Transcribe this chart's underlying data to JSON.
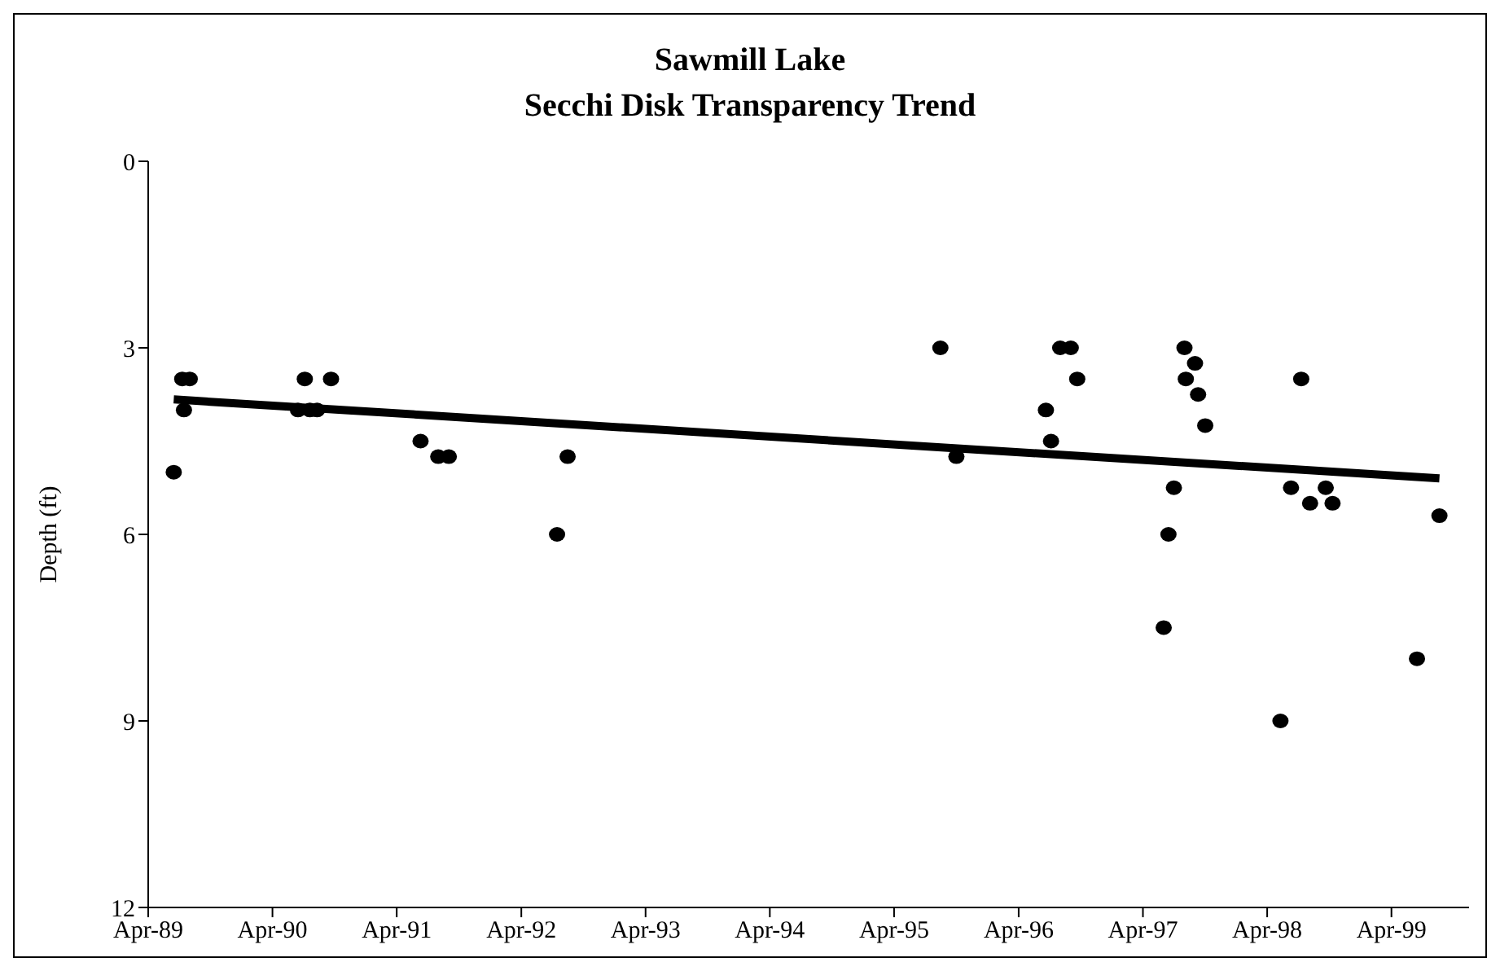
{
  "chart_data": {
    "type": "scatter",
    "title": "Sawmill Lake\nSecchi Disk Transparency Trend",
    "ylabel": "Depth (ft)",
    "xlim": [
      "1989-04-01",
      "1999-11-15"
    ],
    "xticks": [
      {
        "value": "1989-04-01",
        "label": "Apr-89"
      },
      {
        "value": "1990-04-01",
        "label": "Apr-90"
      },
      {
        "value": "1991-04-01",
        "label": "Apr-91"
      },
      {
        "value": "1992-04-01",
        "label": "Apr-92"
      },
      {
        "value": "1993-04-01",
        "label": "Apr-93"
      },
      {
        "value": "1994-04-01",
        "label": "Apr-94"
      },
      {
        "value": "1995-04-01",
        "label": "Apr-95"
      },
      {
        "value": "1996-04-01",
        "label": "Apr-96"
      },
      {
        "value": "1997-04-01",
        "label": "Apr-97"
      },
      {
        "value": "1998-04-01",
        "label": "Apr-98"
      },
      {
        "value": "1999-04-01",
        "label": "Apr-99"
      }
    ],
    "ylim": [
      12,
      0
    ],
    "yticks": [
      0,
      3,
      6,
      9,
      12
    ],
    "grid": false,
    "legend": false,
    "series": [
      {
        "marker": "circle",
        "color": "#000000",
        "x": [
          "1989-06-15",
          "1989-07-10",
          "1989-07-15",
          "1989-08-01",
          "1990-06-15",
          "1990-07-05",
          "1990-07-20",
          "1990-08-10",
          "1990-09-20",
          "1991-06-10",
          "1991-08-01",
          "1991-09-01",
          "1992-07-15",
          "1992-08-15",
          "1995-08-15",
          "1995-10-01",
          "1996-06-20",
          "1996-07-05",
          "1996-08-01",
          "1996-09-01",
          "1996-09-20",
          "1997-06-01",
          "1997-06-15",
          "1997-07-01",
          "1997-08-01",
          "1997-08-05",
          "1997-09-01",
          "1997-09-10",
          "1997-10-01",
          "1998-05-10",
          "1998-06-10",
          "1998-07-10",
          "1998-08-05",
          "1998-09-20",
          "1998-10-10",
          "1999-06-15",
          "1999-08-20"
        ],
        "values": [
          5.0,
          3.5,
          4.0,
          3.5,
          4.0,
          3.5,
          4.0,
          4.0,
          3.5,
          4.5,
          4.75,
          4.75,
          6.0,
          4.75,
          3.0,
          4.75,
          4.0,
          4.5,
          3.0,
          3.0,
          3.5,
          7.5,
          6.0,
          5.25,
          3.0,
          3.5,
          3.25,
          3.75,
          4.25,
          9.0,
          5.25,
          3.5,
          5.5,
          5.25,
          5.5,
          8.0,
          5.7
        ]
      },
      {
        "type": "line",
        "color": "#000000",
        "x": [
          "1989-06-15",
          "1999-08-20"
        ],
        "values": [
          3.83,
          5.1
        ]
      }
    ]
  }
}
